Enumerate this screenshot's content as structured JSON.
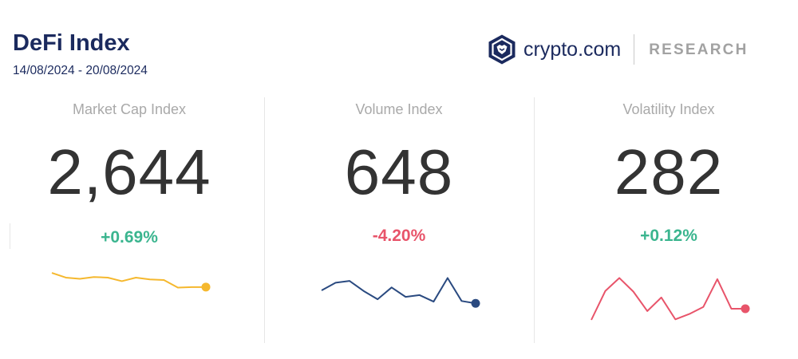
{
  "header": {
    "title": "DeFi Index",
    "date_range": "14/08/2024 - 20/08/2024"
  },
  "brand": {
    "name": "crypto.com",
    "tag": "RESEARCH",
    "logo_icon": "crypto-com-lion-shield-icon",
    "logo_color": "#1b2a5e"
  },
  "colors": {
    "positive": "#3bb58f",
    "negative": "#e8546a",
    "yellow_line": "#f5b82e",
    "navy_line": "#2a4a80",
    "red_line": "#e8546a"
  },
  "chart_data": [
    {
      "type": "line",
      "title": "Market Cap Index",
      "value": "2,644",
      "change": "+0.69%",
      "change_direction": "up",
      "line_color": "#f5b82e",
      "grid": false,
      "values": [
        81,
        73,
        71,
        74,
        73,
        67,
        73,
        70,
        69,
        56,
        57,
        57
      ]
    },
    {
      "type": "line",
      "title": "Volume Index",
      "value": "648",
      "change": "-4.20%",
      "change_direction": "down",
      "line_color": "#2a4a80",
      "grid": false,
      "values": [
        50,
        63,
        66,
        49,
        35,
        55,
        39,
        42,
        31,
        71,
        32,
        28
      ]
    },
    {
      "type": "line",
      "title": "Volatility Index",
      "value": "282",
      "change": "+0.12%",
      "change_direction": "up",
      "line_color": "#e8546a",
      "grid": false,
      "values": [
        0,
        49,
        71,
        48,
        15,
        38,
        1,
        10,
        22,
        69,
        19,
        19
      ]
    }
  ]
}
